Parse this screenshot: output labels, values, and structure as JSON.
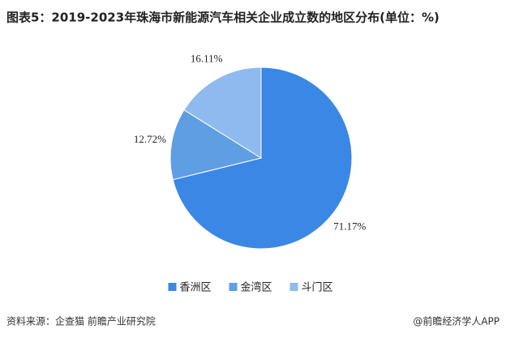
{
  "chart_data": {
    "type": "pie",
    "title": "图表5：2019-2023年珠海市新能源汽车相关企业成立数的地区分布(单位：%)",
    "categories": [
      "香洲区",
      "金湾区",
      "斗门区"
    ],
    "values": [
      71.17,
      12.72,
      16.11
    ],
    "value_labels": [
      "71.17%",
      "12.72%",
      "16.11%"
    ],
    "colors": [
      "#3b87e6",
      "#5f9ee3",
      "#8fbaf0"
    ],
    "source": "资料来源：企查猫 前瞻产业研究院",
    "credit": "@前瞻经济学人APP"
  }
}
